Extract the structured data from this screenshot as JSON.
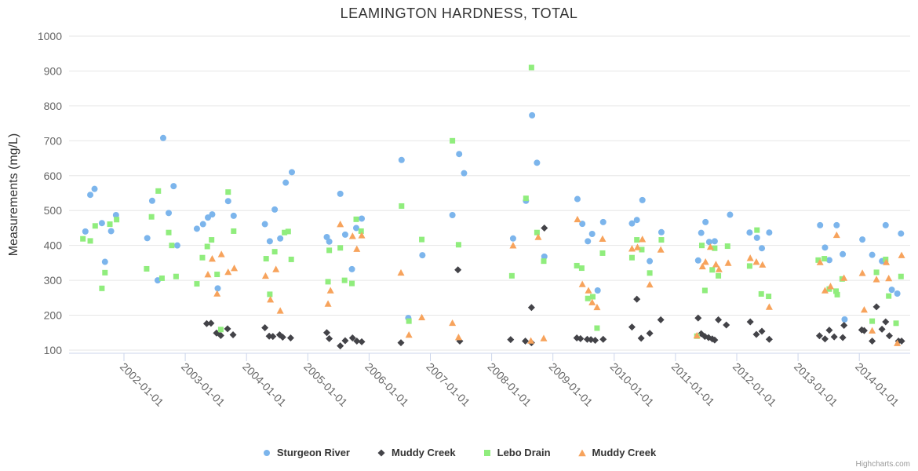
{
  "chart": {
    "title": "LEAMINGTON HARDNESS, TOTAL",
    "credits": "Highcharts.com",
    "background": "#ffffff",
    "gridline_color": "#e6e6e6",
    "axis_line_color": "#ccd6eb",
    "label_color": "#666666",
    "title_color": "#333333"
  },
  "chart_data": {
    "type": "scatter",
    "title": "LEAMINGTON HARDNESS, TOTAL",
    "xlabel": "",
    "ylabel": "Measurements (mg/L)",
    "ylim": [
      100,
      1000
    ],
    "y_ticks": [
      100,
      200,
      300,
      400,
      500,
      600,
      700,
      800,
      900,
      1000
    ],
    "x_tick_labels": [
      "2002-01-01",
      "2003-01-01",
      "2004-01-01",
      "2005-01-01",
      "2006-01-01",
      "2007-01-01",
      "2008-01-01",
      "2009-01-01",
      "2010-01-01",
      "2011-01-01",
      "2012-01-01",
      "2013-01-01",
      "2014-01-01"
    ],
    "x_range_years": [
      2001.1,
      2014.85
    ],
    "grid": "horizontal-only",
    "legend_position": "bottom-center",
    "series": [
      {
        "name": "Sturgeon River",
        "marker": "circle",
        "color": "#7cb5ec",
        "points": [
          [
            2001.37,
            440
          ],
          [
            2001.45,
            545
          ],
          [
            2001.52,
            562
          ],
          [
            2001.64,
            464
          ],
          [
            2001.69,
            353
          ],
          [
            2001.79,
            441
          ],
          [
            2001.87,
            487
          ],
          [
            2002.38,
            421
          ],
          [
            2002.46,
            528
          ],
          [
            2002.55,
            300
          ],
          [
            2002.64,
            708
          ],
          [
            2002.73,
            493
          ],
          [
            2002.81,
            570
          ],
          [
            2002.87,
            400
          ],
          [
            2003.19,
            448
          ],
          [
            2003.29,
            461
          ],
          [
            2003.37,
            480
          ],
          [
            2003.44,
            489
          ],
          [
            2003.53,
            277
          ],
          [
            2003.7,
            527
          ],
          [
            2003.79,
            485
          ],
          [
            2004.3,
            461
          ],
          [
            2004.38,
            412
          ],
          [
            2004.46,
            503
          ],
          [
            2004.55,
            420
          ],
          [
            2004.64,
            580
          ],
          [
            2004.74,
            610
          ],
          [
            2005.31,
            424
          ],
          [
            2005.35,
            411
          ],
          [
            2005.53,
            548
          ],
          [
            2005.61,
            431
          ],
          [
            2005.72,
            332
          ],
          [
            2005.79,
            450
          ],
          [
            2005.88,
            477
          ],
          [
            2006.53,
            645
          ],
          [
            2006.64,
            192
          ],
          [
            2006.87,
            372
          ],
          [
            2007.36,
            487
          ],
          [
            2007.47,
            662
          ],
          [
            2007.55,
            607
          ],
          [
            2008.35,
            420
          ],
          [
            2008.56,
            528
          ],
          [
            2008.66,
            773
          ],
          [
            2008.74,
            637
          ],
          [
            2008.86,
            368
          ],
          [
            2009.4,
            533
          ],
          [
            2009.48,
            462
          ],
          [
            2009.57,
            412
          ],
          [
            2009.64,
            433
          ],
          [
            2009.73,
            271
          ],
          [
            2009.82,
            467
          ],
          [
            2010.29,
            463
          ],
          [
            2010.37,
            473
          ],
          [
            2010.46,
            530
          ],
          [
            2010.58,
            355
          ],
          [
            2010.77,
            438
          ],
          [
            2011.37,
            357
          ],
          [
            2011.42,
            436
          ],
          [
            2011.49,
            467
          ],
          [
            2011.55,
            410
          ],
          [
            2011.64,
            412
          ],
          [
            2011.89,
            488
          ],
          [
            2012.21,
            437
          ],
          [
            2012.33,
            422
          ],
          [
            2012.41,
            392
          ],
          [
            2012.53,
            437
          ],
          [
            2013.36,
            458
          ],
          [
            2013.44,
            394
          ],
          [
            2013.51,
            358
          ],
          [
            2013.63,
            458
          ],
          [
            2013.73,
            375
          ],
          [
            2013.76,
            188
          ],
          [
            2014.05,
            417
          ],
          [
            2014.21,
            373
          ],
          [
            2014.37,
            355
          ],
          [
            2014.43,
            458
          ],
          [
            2014.53,
            273
          ],
          [
            2014.62,
            262
          ],
          [
            2014.68,
            434
          ]
        ]
      },
      {
        "name": "Muddy Creek",
        "marker": "diamond",
        "color": "#434348",
        "points": [
          [
            2003.35,
            176
          ],
          [
            2003.42,
            177
          ],
          [
            2003.51,
            149
          ],
          [
            2003.58,
            142
          ],
          [
            2003.69,
            161
          ],
          [
            2003.78,
            144
          ],
          [
            2004.3,
            164
          ],
          [
            2004.37,
            140
          ],
          [
            2004.43,
            139
          ],
          [
            2004.54,
            144
          ],
          [
            2004.59,
            137
          ],
          [
            2004.72,
            135
          ],
          [
            2005.31,
            150
          ],
          [
            2005.35,
            133
          ],
          [
            2005.53,
            112
          ],
          [
            2005.61,
            127
          ],
          [
            2005.73,
            135
          ],
          [
            2005.8,
            126
          ],
          [
            2005.88,
            124
          ],
          [
            2006.52,
            121
          ],
          [
            2007.45,
            330
          ],
          [
            2007.48,
            126
          ],
          [
            2008.31,
            130
          ],
          [
            2008.55,
            126
          ],
          [
            2008.65,
            121
          ],
          [
            2008.65,
            222
          ],
          [
            2008.86,
            450
          ],
          [
            2009.39,
            135
          ],
          [
            2009.45,
            133
          ],
          [
            2009.56,
            131
          ],
          [
            2009.62,
            130
          ],
          [
            2009.69,
            128
          ],
          [
            2009.82,
            131
          ],
          [
            2010.29,
            166
          ],
          [
            2010.37,
            246
          ],
          [
            2010.44,
            134
          ],
          [
            2010.58,
            148
          ],
          [
            2010.76,
            187
          ],
          [
            2011.37,
            192
          ],
          [
            2011.42,
            147
          ],
          [
            2011.48,
            139
          ],
          [
            2011.54,
            136
          ],
          [
            2011.6,
            132
          ],
          [
            2011.64,
            129
          ],
          [
            2011.7,
            187
          ],
          [
            2011.83,
            172
          ],
          [
            2012.22,
            181
          ],
          [
            2012.32,
            145
          ],
          [
            2012.41,
            154
          ],
          [
            2012.53,
            131
          ],
          [
            2013.35,
            141
          ],
          [
            2013.44,
            132
          ],
          [
            2013.51,
            157
          ],
          [
            2013.59,
            138
          ],
          [
            2013.73,
            136
          ],
          [
            2013.75,
            171
          ],
          [
            2014.04,
            158
          ],
          [
            2014.08,
            156
          ],
          [
            2014.21,
            126
          ],
          [
            2014.28,
            224
          ],
          [
            2014.37,
            160
          ],
          [
            2014.43,
            181
          ],
          [
            2014.49,
            141
          ],
          [
            2014.64,
            126
          ],
          [
            2014.69,
            126
          ]
        ]
      },
      {
        "name": "Lebo Drain",
        "marker": "square",
        "color": "#90ed7d",
        "points": [
          [
            2001.33,
            419
          ],
          [
            2001.45,
            413
          ],
          [
            2001.53,
            456
          ],
          [
            2001.64,
            277
          ],
          [
            2001.69,
            322
          ],
          [
            2001.77,
            461
          ],
          [
            2001.88,
            474
          ],
          [
            2002.37,
            333
          ],
          [
            2002.45,
            482
          ],
          [
            2002.56,
            556
          ],
          [
            2002.62,
            306
          ],
          [
            2002.73,
            437
          ],
          [
            2002.78,
            400
          ],
          [
            2002.85,
            311
          ],
          [
            2003.19,
            290
          ],
          [
            2003.28,
            365
          ],
          [
            2003.36,
            397
          ],
          [
            2003.43,
            416
          ],
          [
            2003.52,
            317
          ],
          [
            2003.58,
            159
          ],
          [
            2003.7,
            553
          ],
          [
            2003.79,
            441
          ],
          [
            2004.32,
            362
          ],
          [
            2004.38,
            260
          ],
          [
            2004.46,
            382
          ],
          [
            2004.62,
            437
          ],
          [
            2004.68,
            440
          ],
          [
            2004.73,
            360
          ],
          [
            2005.33,
            296
          ],
          [
            2005.35,
            386
          ],
          [
            2005.53,
            393
          ],
          [
            2005.6,
            300
          ],
          [
            2005.72,
            291
          ],
          [
            2005.79,
            475
          ],
          [
            2005.87,
            441
          ],
          [
            2006.53,
            513
          ],
          [
            2006.65,
            183
          ],
          [
            2006.86,
            417
          ],
          [
            2007.36,
            700
          ],
          [
            2007.46,
            402
          ],
          [
            2008.33,
            313
          ],
          [
            2008.56,
            535
          ],
          [
            2008.65,
            910
          ],
          [
            2008.74,
            437
          ],
          [
            2008.85,
            355
          ],
          [
            2009.39,
            342
          ],
          [
            2009.47,
            335
          ],
          [
            2009.57,
            248
          ],
          [
            2009.65,
            253
          ],
          [
            2009.72,
            163
          ],
          [
            2009.81,
            378
          ],
          [
            2010.29,
            365
          ],
          [
            2010.37,
            416
          ],
          [
            2010.45,
            388
          ],
          [
            2010.58,
            321
          ],
          [
            2010.77,
            416
          ],
          [
            2011.35,
            140
          ],
          [
            2011.43,
            400
          ],
          [
            2011.48,
            271
          ],
          [
            2011.6,
            330
          ],
          [
            2011.64,
            392
          ],
          [
            2011.7,
            313
          ],
          [
            2011.85,
            398
          ],
          [
            2012.21,
            341
          ],
          [
            2012.33,
            444
          ],
          [
            2012.4,
            261
          ],
          [
            2012.52,
            254
          ],
          [
            2013.33,
            358
          ],
          [
            2013.43,
            362
          ],
          [
            2013.51,
            275
          ],
          [
            2013.62,
            269
          ],
          [
            2013.64,
            259
          ],
          [
            2013.72,
            304
          ],
          [
            2014.21,
            183
          ],
          [
            2014.28,
            323
          ],
          [
            2014.43,
            360
          ],
          [
            2014.48,
            255
          ],
          [
            2014.6,
            177
          ],
          [
            2014.68,
            311
          ]
        ]
      },
      {
        "name": "Muddy Creek",
        "marker": "triangle",
        "color": "#f7a35c",
        "points": [
          [
            2003.37,
            317
          ],
          [
            2003.44,
            362
          ],
          [
            2003.52,
            262
          ],
          [
            2003.59,
            375
          ],
          [
            2003.7,
            324
          ],
          [
            2003.8,
            335
          ],
          [
            2004.31,
            313
          ],
          [
            2004.39,
            245
          ],
          [
            2004.48,
            332
          ],
          [
            2004.55,
            213
          ],
          [
            2005.33,
            233
          ],
          [
            2005.37,
            271
          ],
          [
            2005.53,
            461
          ],
          [
            2005.73,
            427
          ],
          [
            2005.8,
            390
          ],
          [
            2005.88,
            429
          ],
          [
            2006.52,
            322
          ],
          [
            2006.65,
            144
          ],
          [
            2006.86,
            194
          ],
          [
            2007.36,
            178
          ],
          [
            2007.46,
            137
          ],
          [
            2008.35,
            400
          ],
          [
            2008.64,
            127
          ],
          [
            2008.76,
            424
          ],
          [
            2008.85,
            134
          ],
          [
            2009.4,
            475
          ],
          [
            2009.48,
            289
          ],
          [
            2009.58,
            271
          ],
          [
            2009.64,
            237
          ],
          [
            2009.72,
            223
          ],
          [
            2009.81,
            419
          ],
          [
            2010.29,
            391
          ],
          [
            2010.38,
            395
          ],
          [
            2010.46,
            418
          ],
          [
            2010.58,
            288
          ],
          [
            2010.76,
            388
          ],
          [
            2011.35,
            142
          ],
          [
            2011.44,
            340
          ],
          [
            2011.49,
            353
          ],
          [
            2011.57,
            396
          ],
          [
            2011.66,
            346
          ],
          [
            2011.71,
            332
          ],
          [
            2011.86,
            350
          ],
          [
            2012.22,
            364
          ],
          [
            2012.32,
            353
          ],
          [
            2012.42,
            345
          ],
          [
            2012.53,
            224
          ],
          [
            2013.36,
            352
          ],
          [
            2013.44,
            271
          ],
          [
            2013.53,
            283
          ],
          [
            2013.63,
            430
          ],
          [
            2013.75,
            307
          ],
          [
            2014.05,
            321
          ],
          [
            2014.08,
            216
          ],
          [
            2014.21,
            156
          ],
          [
            2014.28,
            303
          ],
          [
            2014.44,
            352
          ],
          [
            2014.48,
            306
          ],
          [
            2014.62,
            120
          ],
          [
            2014.69,
            372
          ]
        ]
      }
    ]
  }
}
